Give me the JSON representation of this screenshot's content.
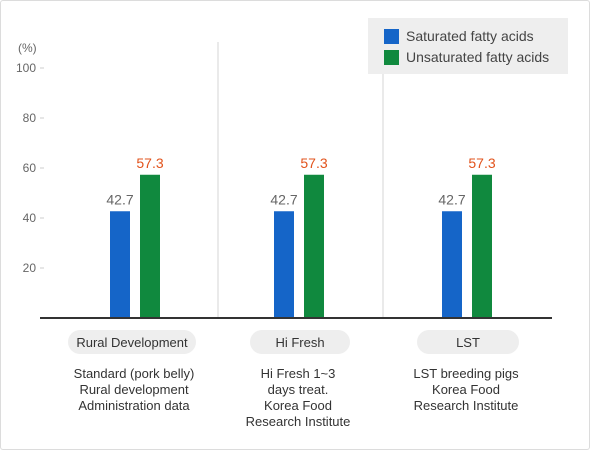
{
  "chart_data": {
    "type": "bar",
    "ylabel": "(%)",
    "ylim": [
      0,
      100
    ],
    "yticks": [
      20,
      40,
      60,
      80,
      100
    ],
    "grid": false,
    "legend_position": "top-right",
    "categories": [
      "Rural Development",
      "Hi Fresh",
      "LST"
    ],
    "series": [
      {
        "name": "Saturated fatty acids",
        "color": "#1565c8",
        "label_color": "#666666",
        "values": [
          42.7,
          42.7,
          42.7
        ]
      },
      {
        "name": "Unsaturated fatty acids",
        "color": "#10893e",
        "label_color": "#e2531c",
        "values": [
          57.3,
          57.3,
          57.3
        ]
      }
    ]
  },
  "groups": [
    {
      "label": "Rural Development",
      "description": [
        "Standard (pork belly)",
        "Rural development",
        "Administration data"
      ]
    },
    {
      "label": "Hi Fresh",
      "description": [
        "Hi Fresh 1~3",
        "days treat.",
        "Korea Food",
        "Research Institute"
      ]
    },
    {
      "label": "LST",
      "description": [
        "LST breeding pigs",
        "Korea Food",
        "Research Institute"
      ]
    }
  ]
}
